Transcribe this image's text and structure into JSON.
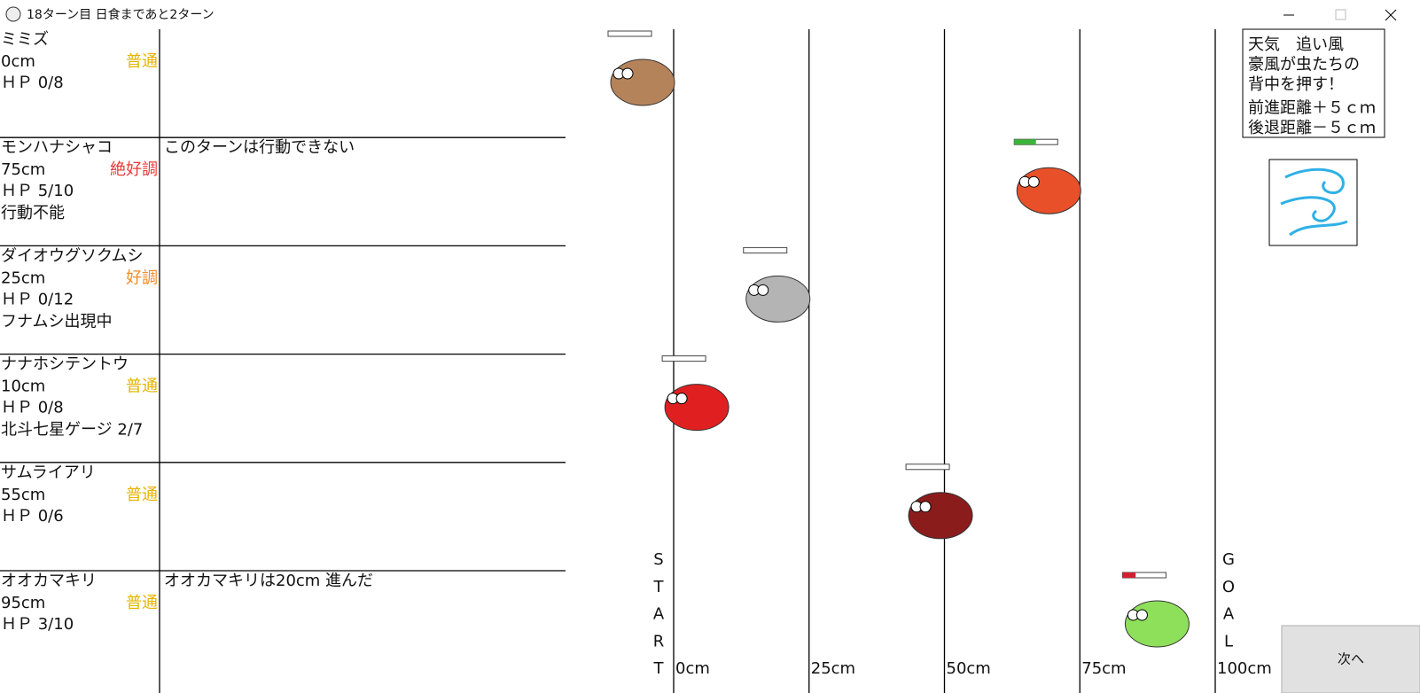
{
  "window": {
    "title": "18ターン目 日食まであと2ターン"
  },
  "insects": [
    {
      "name": "ミミズ",
      "position": {
        "value": 0,
        "label": "0cm"
      },
      "condition": "普通",
      "condition_color": "#e6b400",
      "hp": {
        "current": 0,
        "max": 8,
        "label": "ＨＰ 0/8"
      },
      "color": "#b5835a"
    },
    {
      "name": "モンハナシャコ",
      "position": {
        "value": 75,
        "label": "75cm"
      },
      "condition": "絶好調",
      "condition_color": "#e8393a",
      "hp": {
        "current": 5,
        "max": 10,
        "label": "ＨＰ 5/10"
      },
      "status": "行動不能",
      "message": "このターンは行動できない",
      "color": "#e8502a"
    },
    {
      "name": "ダイオウグソクムシ",
      "position": {
        "value": 25,
        "label": "25cm"
      },
      "condition": "好調",
      "condition_color": "#f08c28",
      "hp": {
        "current": 0,
        "max": 12,
        "label": "ＨＰ 0/12"
      },
      "status": "フナムシ出現中",
      "color": "#b4b4b4"
    },
    {
      "name": "ナナホシテントウ",
      "position": {
        "value": 10,
        "label": "10cm"
      },
      "condition": "普通",
      "condition_color": "#e6b400",
      "hp": {
        "current": 0,
        "max": 8,
        "label": "ＨＰ 0/8"
      },
      "status": "北斗七星ゲージ 2/7",
      "color": "#e02020"
    },
    {
      "name": "サムライアリ",
      "position": {
        "value": 55,
        "label": "55cm"
      },
      "condition": "普通",
      "condition_color": "#e6b400",
      "hp": {
        "current": 0,
        "max": 6,
        "label": "ＨＰ 0/6"
      },
      "color": "#8b1c1c"
    },
    {
      "name": "オオカマキリ",
      "position": {
        "value": 95,
        "label": "95cm"
      },
      "condition": "普通",
      "condition_color": "#e6b400",
      "hp": {
        "current": 3,
        "max": 10,
        "label": "ＨＰ 3/10"
      },
      "message": "オオカマキリは20cm 進んだ",
      "color": "#8ee05a"
    }
  ],
  "track": {
    "start": [
      "S",
      "T",
      "A",
      "R",
      "T"
    ],
    "goal": [
      "G",
      "O",
      "A",
      "L"
    ],
    "ticks": [
      {
        "value": 0,
        "label": "0cm"
      },
      {
        "value": 25,
        "label": "25cm"
      },
      {
        "value": 50,
        "label": "50cm"
      },
      {
        "value": 75,
        "label": "75cm"
      },
      {
        "value": 100,
        "label": "100cm"
      }
    ]
  },
  "weather": {
    "lines": [
      "天気　追い風",
      "豪風が虫たちの",
      "背中を押す！",
      "前進距離＋５ｃｍ",
      "後退距離－５ｃｍ"
    ]
  },
  "next_button": "次へ"
}
